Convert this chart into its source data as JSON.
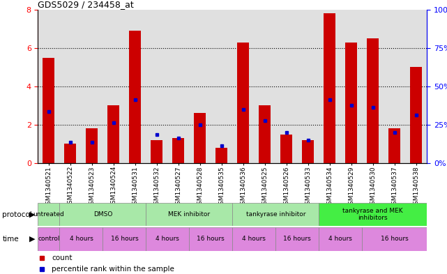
{
  "title": "GDS5029 / 234458_at",
  "samples": [
    "GSM1340521",
    "GSM1340522",
    "GSM1340523",
    "GSM1340524",
    "GSM1340531",
    "GSM1340532",
    "GSM1340527",
    "GSM1340528",
    "GSM1340535",
    "GSM1340536",
    "GSM1340525",
    "GSM1340526",
    "GSM1340533",
    "GSM1340534",
    "GSM1340529",
    "GSM1340530",
    "GSM1340537",
    "GSM1340538"
  ],
  "red_values": [
    5.5,
    1.0,
    1.8,
    3.0,
    6.9,
    1.2,
    1.3,
    2.6,
    0.8,
    6.3,
    3.0,
    1.5,
    1.2,
    7.8,
    6.3,
    6.5,
    1.8,
    5.0
  ],
  "blue_values": [
    2.7,
    1.1,
    1.1,
    2.1,
    3.3,
    1.5,
    1.3,
    2.0,
    0.9,
    2.8,
    2.2,
    1.6,
    1.2,
    3.3,
    3.0,
    2.9,
    1.6,
    2.5
  ],
  "ylim_left": [
    0,
    8
  ],
  "ylim_right": [
    0,
    100
  ],
  "yticks_left": [
    0,
    2,
    4,
    6,
    8
  ],
  "yticks_right": [
    0,
    25,
    50,
    75,
    100
  ],
  "bar_color": "#cc0000",
  "marker_color": "#0000cc",
  "col_bg_color": "#e0e0e0",
  "protocol_light_green": "#a8e8a8",
  "protocol_bright_green": "#44ee44",
  "time_color": "#dd88dd",
  "protocol_groups": [
    {
      "label": "untreated",
      "start": 0,
      "end": 1
    },
    {
      "label": "DMSO",
      "start": 1,
      "end": 5
    },
    {
      "label": "MEK inhibitor",
      "start": 5,
      "end": 9
    },
    {
      "label": "tankyrase inhibitor",
      "start": 9,
      "end": 13
    },
    {
      "label": "tankyrase and MEK\ninhibitors",
      "start": 13,
      "end": 18
    }
  ],
  "time_groups": [
    {
      "label": "control",
      "start": 0,
      "end": 1
    },
    {
      "label": "4 hours",
      "start": 1,
      "end": 3
    },
    {
      "label": "16 hours",
      "start": 3,
      "end": 5
    },
    {
      "label": "4 hours",
      "start": 5,
      "end": 7
    },
    {
      "label": "16 hours",
      "start": 7,
      "end": 9
    },
    {
      "label": "4 hours",
      "start": 9,
      "end": 11
    },
    {
      "label": "16 hours",
      "start": 11,
      "end": 13
    },
    {
      "label": "4 hours",
      "start": 13,
      "end": 15
    },
    {
      "label": "16 hours",
      "start": 15,
      "end": 18
    }
  ]
}
